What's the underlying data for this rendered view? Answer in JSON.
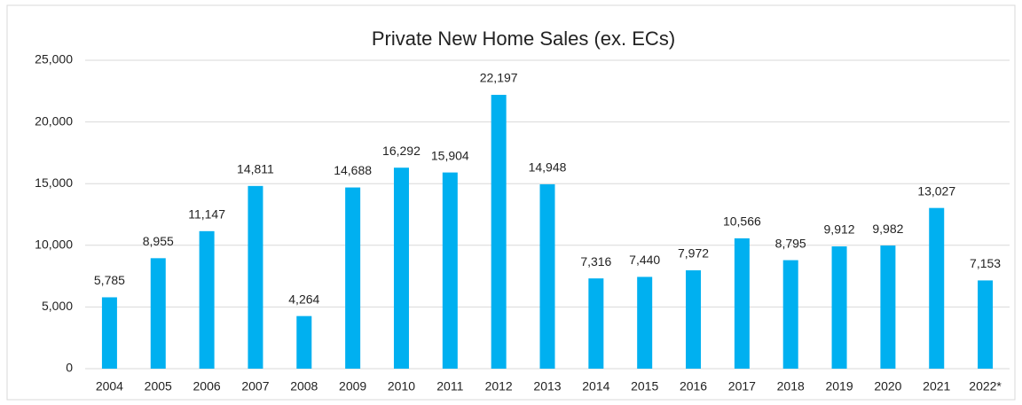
{
  "chart_data": {
    "type": "bar",
    "title": "Private New Home Sales (ex. ECs)",
    "categories": [
      "2004",
      "2005",
      "2006",
      "2007",
      "2008",
      "2009",
      "2010",
      "2011",
      "2012",
      "2013",
      "2014",
      "2015",
      "2016",
      "2017",
      "2018",
      "2019",
      "2020",
      "2021",
      "2022*"
    ],
    "values": [
      5785,
      8955,
      11147,
      14811,
      4264,
      14688,
      16292,
      15904,
      22197,
      14948,
      7316,
      7440,
      7972,
      10566,
      8795,
      9912,
      9982,
      13027,
      7153
    ],
    "value_labels": [
      "5,785",
      "8,955",
      "11,147",
      "14,811",
      "4,264",
      "14,688",
      "16,292",
      "15,904",
      "22,197",
      "14,948",
      "7,316",
      "7,440",
      "7,972",
      "10,566",
      "8,795",
      "9,912",
      "9,982",
      "13,027",
      "7,153"
    ],
    "color": "#00b0f0",
    "ylim": [
      0,
      25000
    ],
    "yticks": [
      0,
      {
        "value": 5000,
        "label": "5,000"
      },
      {
        "value": 10000,
        "label": "10,000"
      },
      {
        "value": 15000,
        "label": "15,000"
      },
      {
        "value": 20000,
        "label": "20,000"
      },
      {
        "value": 25000,
        "label": "25,000"
      }
    ],
    "grid": true
  }
}
